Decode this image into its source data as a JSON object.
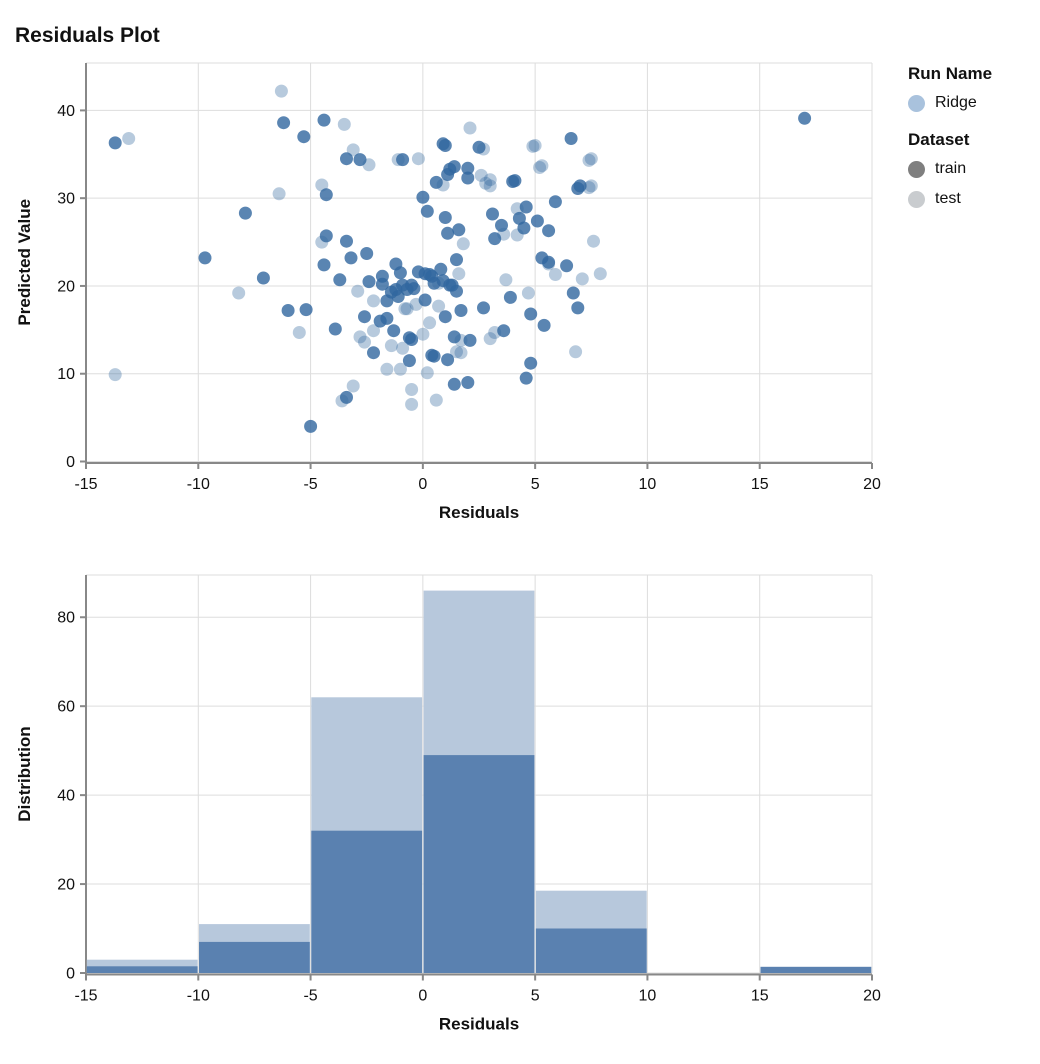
{
  "title": "Residuals Plot",
  "theme": {
    "grid_color": "#dddddd",
    "frame_color": "#dddddd",
    "axis_color": "#888888",
    "label_color": "#111111",
    "scatter_base_color": "#31679f",
    "train_point_opacity": 0.8,
    "test_point_opacity": 0.35,
    "bar_train_color": "#5a81b0",
    "bar_test_color": "#b7c8dc"
  },
  "legend": {
    "run_name_title": "Run Name",
    "runs": [
      {
        "label": "Ridge",
        "color": "#a9c2dd"
      }
    ],
    "dataset_title": "Dataset",
    "datasets": [
      {
        "label": "train",
        "color": "#7f7f7f"
      },
      {
        "label": "test",
        "color": "#c9cccf"
      }
    ]
  },
  "chart_data": [
    {
      "type": "scatter",
      "title": "Residuals Plot",
      "xlabel": "Residuals",
      "ylabel": "Predicted Value",
      "xlim": [
        -15,
        20
      ],
      "ylim": [
        0,
        45.4
      ],
      "xticks": [
        -15,
        -10,
        -5,
        0,
        5,
        10,
        15,
        20
      ],
      "yticks": [
        0,
        10,
        20,
        30,
        40
      ],
      "grid": true,
      "legend_position": "right",
      "series": [
        {
          "name": "Ridge / test",
          "dataset": "test",
          "points": [
            [
              -13.7,
              9.9
            ],
            [
              -13.1,
              36.8
            ],
            [
              -8.2,
              19.2
            ],
            [
              -6.4,
              30.5
            ],
            [
              -6.3,
              42.2
            ],
            [
              -5.5,
              14.7
            ],
            [
              -4.5,
              31.5
            ],
            [
              -4.5,
              25.0
            ],
            [
              -3.6,
              6.9
            ],
            [
              -3.5,
              38.4
            ],
            [
              -3.1,
              35.5
            ],
            [
              -3.1,
              8.6
            ],
            [
              -2.9,
              19.4
            ],
            [
              -2.8,
              14.2
            ],
            [
              -2.6,
              13.6
            ],
            [
              -2.4,
              33.8
            ],
            [
              -2.2,
              18.3
            ],
            [
              -2.2,
              14.9
            ],
            [
              -1.6,
              10.5
            ],
            [
              -1.4,
              13.2
            ],
            [
              -1.1,
              34.4
            ],
            [
              -1.0,
              10.5
            ],
            [
              -0.9,
              12.9
            ],
            [
              -0.8,
              17.4
            ],
            [
              -0.7,
              17.4
            ],
            [
              -0.5,
              6.5
            ],
            [
              -0.5,
              8.2
            ],
            [
              -0.3,
              17.9
            ],
            [
              -0.2,
              34.5
            ],
            [
              0.0,
              14.5
            ],
            [
              0.2,
              10.1
            ],
            [
              0.3,
              15.8
            ],
            [
              0.6,
              7.0
            ],
            [
              0.7,
              17.7
            ],
            [
              0.7,
              20.3
            ],
            [
              0.9,
              31.5
            ],
            [
              1.5,
              12.5
            ],
            [
              1.6,
              21.4
            ],
            [
              1.7,
              13.8
            ],
            [
              1.7,
              12.4
            ],
            [
              1.8,
              24.8
            ],
            [
              2.1,
              38.0
            ],
            [
              2.6,
              32.6
            ],
            [
              2.7,
              35.6
            ],
            [
              2.8,
              31.7
            ],
            [
              3.0,
              32.1
            ],
            [
              3.0,
              31.4
            ],
            [
              3.0,
              14.0
            ],
            [
              3.2,
              14.7
            ],
            [
              3.6,
              25.9
            ],
            [
              3.7,
              20.7
            ],
            [
              4.2,
              28.8
            ],
            [
              4.2,
              25.8
            ],
            [
              4.7,
              19.2
            ],
            [
              4.9,
              35.9
            ],
            [
              5.0,
              36.0
            ],
            [
              5.2,
              33.5
            ],
            [
              5.3,
              33.7
            ],
            [
              5.6,
              22.5
            ],
            [
              5.9,
              21.3
            ],
            [
              6.8,
              12.5
            ],
            [
              7.1,
              20.8
            ],
            [
              7.4,
              34.3
            ],
            [
              7.4,
              31.2
            ],
            [
              7.5,
              34.5
            ],
            [
              7.5,
              31.4
            ],
            [
              7.6,
              25.1
            ],
            [
              7.9,
              21.4
            ]
          ]
        },
        {
          "name": "Ridge / train",
          "dataset": "train",
          "points": [
            [
              -13.7,
              36.3
            ],
            [
              -9.7,
              23.2
            ],
            [
              -7.9,
              28.3
            ],
            [
              -7.1,
              20.9
            ],
            [
              -6.2,
              38.6
            ],
            [
              -6.0,
              17.2
            ],
            [
              -5.3,
              37.0
            ],
            [
              -5.2,
              17.3
            ],
            [
              -5.0,
              4.0
            ],
            [
              -4.4,
              38.9
            ],
            [
              -4.4,
              22.4
            ],
            [
              -4.3,
              30.4
            ],
            [
              -4.3,
              25.7
            ],
            [
              -3.9,
              15.1
            ],
            [
              -3.7,
              20.7
            ],
            [
              -3.4,
              34.5
            ],
            [
              -3.4,
              25.1
            ],
            [
              -3.4,
              7.3
            ],
            [
              -3.2,
              23.2
            ],
            [
              -2.8,
              34.4
            ],
            [
              -2.6,
              16.5
            ],
            [
              -2.5,
              23.7
            ],
            [
              -2.4,
              20.5
            ],
            [
              -2.2,
              12.4
            ],
            [
              -1.9,
              16.0
            ],
            [
              -1.8,
              21.1
            ],
            [
              -1.8,
              20.2
            ],
            [
              -1.6,
              18.3
            ],
            [
              -1.6,
              16.3
            ],
            [
              -1.4,
              19.3
            ],
            [
              -1.3,
              14.9
            ],
            [
              -1.2,
              19.6
            ],
            [
              -1.2,
              22.5
            ],
            [
              -1.1,
              18.8
            ],
            [
              -1.0,
              21.5
            ],
            [
              -0.9,
              20.1
            ],
            [
              -0.9,
              34.4
            ],
            [
              -0.7,
              19.6
            ],
            [
              -0.6,
              11.5
            ],
            [
              -0.6,
              14.1
            ],
            [
              -0.5,
              20.1
            ],
            [
              -0.5,
              13.9
            ],
            [
              -0.4,
              19.7
            ],
            [
              -0.2,
              21.6
            ],
            [
              0.0,
              30.1
            ],
            [
              0.1,
              18.4
            ],
            [
              0.1,
              21.4
            ],
            [
              0.2,
              28.5
            ],
            [
              0.3,
              21.3
            ],
            [
              0.4,
              21.1
            ],
            [
              0.4,
              12.1
            ],
            [
              0.5,
              12.0
            ],
            [
              0.5,
              20.3
            ],
            [
              0.6,
              31.8
            ],
            [
              0.8,
              21.9
            ],
            [
              0.9,
              36.2
            ],
            [
              0.9,
              20.6
            ],
            [
              1.0,
              36.0
            ],
            [
              1.0,
              16.5
            ],
            [
              1.0,
              27.8
            ],
            [
              1.1,
              26.0
            ],
            [
              1.1,
              32.7
            ],
            [
              1.1,
              11.6
            ],
            [
              1.2,
              33.3
            ],
            [
              1.2,
              20.1
            ],
            [
              1.3,
              20.1
            ],
            [
              1.4,
              14.2
            ],
            [
              1.4,
              8.8
            ],
            [
              1.4,
              33.6
            ],
            [
              1.5,
              19.4
            ],
            [
              1.5,
              23.0
            ],
            [
              1.6,
              26.4
            ],
            [
              1.7,
              17.2
            ],
            [
              2.0,
              32.3
            ],
            [
              2.0,
              33.4
            ],
            [
              2.0,
              9.0
            ],
            [
              2.1,
              13.8
            ],
            [
              2.5,
              35.8
            ],
            [
              2.7,
              17.5
            ],
            [
              3.1,
              28.2
            ],
            [
              3.2,
              25.4
            ],
            [
              3.5,
              26.9
            ],
            [
              3.6,
              14.9
            ],
            [
              3.9,
              18.7
            ],
            [
              4.0,
              31.9
            ],
            [
              4.1,
              32.0
            ],
            [
              4.3,
              27.7
            ],
            [
              4.5,
              26.6
            ],
            [
              4.6,
              29.0
            ],
            [
              4.6,
              9.5
            ],
            [
              4.8,
              11.2
            ],
            [
              4.8,
              16.8
            ],
            [
              5.1,
              27.4
            ],
            [
              5.3,
              23.2
            ],
            [
              5.4,
              15.5
            ],
            [
              5.6,
              26.3
            ],
            [
              5.6,
              22.7
            ],
            [
              5.9,
              29.6
            ],
            [
              6.4,
              22.3
            ],
            [
              6.6,
              36.8
            ],
            [
              6.7,
              19.2
            ],
            [
              6.9,
              31.1
            ],
            [
              6.9,
              17.5
            ],
            [
              7.0,
              31.4
            ],
            [
              17.0,
              39.1
            ]
          ]
        }
      ]
    },
    {
      "type": "bar",
      "subtype": "overlaid-histogram",
      "xlabel": "Residuals",
      "ylabel": "Distribution",
      "xlim": [
        -15,
        20
      ],
      "ylim": [
        0,
        89.5
      ],
      "xticks": [
        -15,
        -10,
        -5,
        0,
        5,
        10,
        15,
        20
      ],
      "yticks": [
        0,
        20,
        40,
        60,
        80
      ],
      "grid": true,
      "bin_edges": [
        -15,
        -10,
        -5,
        0,
        5,
        10,
        15,
        20
      ],
      "series": [
        {
          "name": "test (overall height)",
          "dataset": "test",
          "values": [
            3,
            11,
            62,
            86,
            18.5,
            0,
            0
          ]
        },
        {
          "name": "train",
          "dataset": "train",
          "values": [
            1.5,
            7,
            32,
            49,
            10,
            0,
            1.4
          ]
        }
      ]
    }
  ]
}
